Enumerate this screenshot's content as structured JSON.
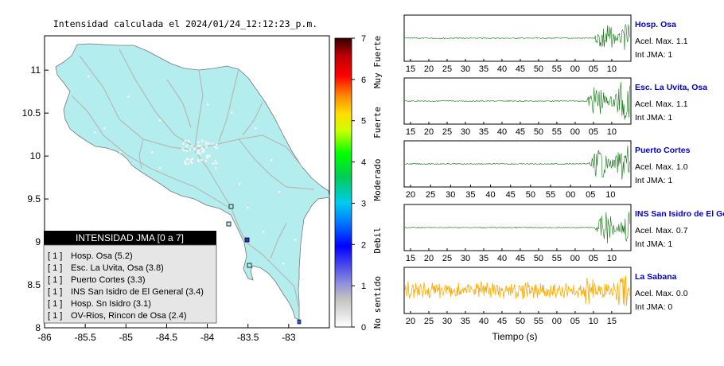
{
  "map": {
    "title": "Intensidad calculada el 2024/01/24_12:12:23_p.m.",
    "x_ticks": [
      "-86",
      "-85.5",
      "-85",
      "-84.5",
      "-84",
      "-83.5",
      "-83"
    ],
    "y_ticks": [
      "8",
      "8.5",
      "9",
      "9.5",
      "10",
      "10.5",
      "11"
    ],
    "xlim": [
      -86,
      -82.5
    ],
    "ylim": [
      8,
      11.4
    ],
    "land_color": "#b3eded",
    "road_color": "#b8b8b8"
  },
  "colorbar": {
    "ticks": [
      "0",
      "1",
      "2",
      "3",
      "4",
      "5",
      "6",
      "7"
    ],
    "category_labels": [
      "No sentido",
      "Debil",
      "Moderado",
      "Fuerte",
      "Muy Fuerte"
    ],
    "range": [
      0,
      7
    ]
  },
  "legend": {
    "title": "INTENSIDAD JMA [0 a 7]",
    "items": [
      {
        "badge": "[ 1 ]",
        "label": "Hosp. Osa (5.2)"
      },
      {
        "badge": "[ 1 ]",
        "label": "Esc. La Uvita, Osa (3.8)"
      },
      {
        "badge": "[ 1 ]",
        "label": "Puerto Cortes (3.3)"
      },
      {
        "badge": "[ 1 ]",
        "label": "INS San Isidro de El General (3.4)"
      },
      {
        "badge": "[ 1 ]",
        "label": "Hosp. Sn Isidro (3.1)"
      },
      {
        "badge": "[ 1 ]",
        "label": "OV-Rios, Rincon de Osa (2.4)"
      }
    ]
  },
  "waveforms": {
    "xlabel": "Tiempo (s)",
    "panels": [
      {
        "station": "Hosp. Osa",
        "accel": "Acel. Max. 1.1",
        "int": "Int JMA: 1",
        "ticks": [
          "15",
          "20",
          "25",
          "30",
          "35",
          "40",
          "45",
          "50",
          "55",
          "00",
          "05",
          "10"
        ],
        "color": "#117711"
      },
      {
        "station": "Esc. La Uvita, Osa",
        "accel": "Acel. Max. 1.1",
        "int": "Int JMA: 1",
        "ticks": [
          "15",
          "20",
          "25",
          "30",
          "35",
          "40",
          "45",
          "50",
          "55",
          "00",
          "05",
          "10"
        ],
        "color": "#117711"
      },
      {
        "station": "Puerto Cortes",
        "accel": "Acel. Max. 1.0",
        "int": "Int JMA: 1",
        "ticks": [
          "20",
          "25",
          "30",
          "35",
          "40",
          "45",
          "50",
          "55",
          "00",
          "05",
          "10"
        ],
        "color": "#117711"
      },
      {
        "station": "INS San Isidro de El Ge",
        "accel": "Acel. Max. 0.7",
        "int": "Int JMA: 1",
        "ticks": [
          "15",
          "20",
          "25",
          "30",
          "35",
          "40",
          "45",
          "50",
          "55",
          "00",
          "05",
          "10"
        ],
        "color": "#117711"
      },
      {
        "station": "La Sabana",
        "accel": "Acel. Max. 0.0",
        "int": "Int JMA: 0",
        "ticks": [
          "20",
          "25",
          "30",
          "35",
          "40",
          "45",
          "50",
          "55",
          "00",
          "05",
          "10",
          "15"
        ],
        "color": "#ffaa00"
      }
    ]
  },
  "colors": {
    "station_name": "#0000cc",
    "legend_header_bg": "#000000",
    "legend_box_bg": "#e6e6e6"
  }
}
